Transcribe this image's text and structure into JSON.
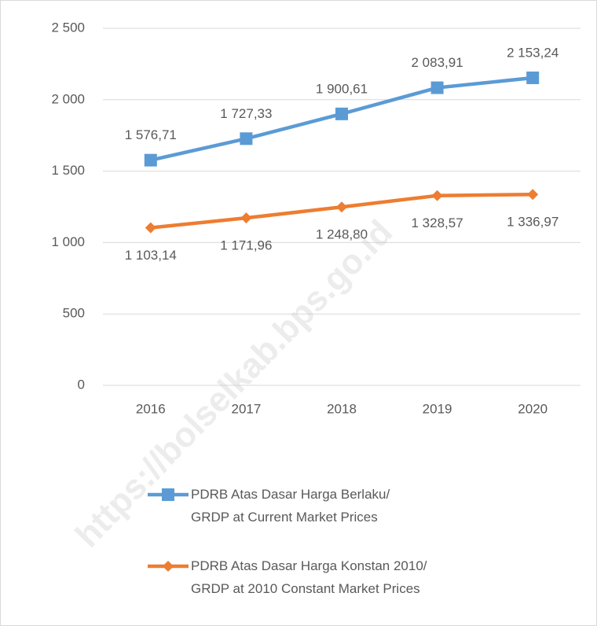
{
  "chart_data": {
    "type": "line",
    "categories": [
      "2016",
      "2017",
      "2018",
      "2019",
      "2020"
    ],
    "series": [
      {
        "name": "PDRB Atas Dasar Harga Berlaku/\nGRDP at Current Market Prices",
        "color": "#5b9bd5",
        "marker": "square",
        "values": [
          1576.71,
          1727.33,
          1900.61,
          2083.91,
          2153.24
        ],
        "value_labels": [
          "1 576,71",
          "1 727,33",
          "1 900,61",
          "2 083,91",
          "2 153,24"
        ]
      },
      {
        "name": "PDRB Atas Dasar Harga Konstan 2010/\nGRDP at 2010 Constant Market Prices",
        "color": "#ed7d31",
        "marker": "diamond",
        "values": [
          1103.14,
          1171.96,
          1248.8,
          1328.57,
          1336.97
        ],
        "value_labels": [
          "1 103,14",
          "1 171,96",
          "1 248,80",
          "1 328,57",
          "1 336,97"
        ]
      }
    ],
    "ylim": [
      0,
      2500
    ],
    "yticks": [
      0,
      500,
      {
        "value": 1000,
        "label": "1 000"
      },
      {
        "value": 1500,
        "label": "1 500"
      },
      {
        "value": 2000,
        "label": "2 000"
      },
      {
        "value": 2500,
        "label": "2 500"
      }
    ],
    "grid": true,
    "legend": "bottom",
    "watermark": "https://bolselkab.bps.go.id"
  }
}
